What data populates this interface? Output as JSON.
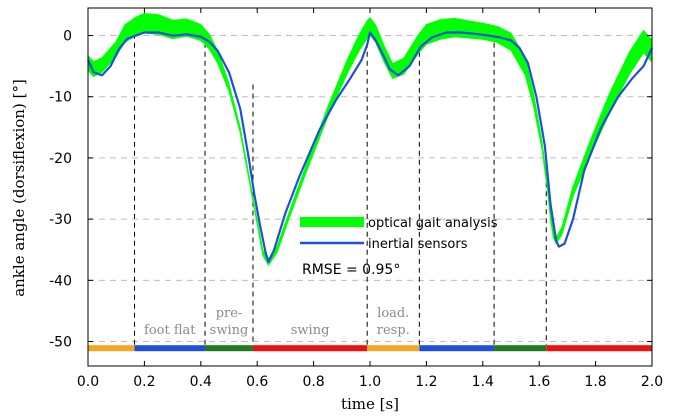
{
  "chart_data": {
    "type": "line",
    "xlabel": "time [s]",
    "ylabel": "ankle angle (dorsiflexion) [°]",
    "xlim": [
      0.0,
      2.0
    ],
    "ylim": [
      -54,
      4.5
    ],
    "xticks": [
      0.0,
      0.2,
      0.4,
      0.6,
      0.8,
      1.0,
      1.2,
      1.4,
      1.6,
      1.8,
      2.0
    ],
    "xtick_labels": [
      "0.0",
      "0.2",
      "0.4",
      "0.6",
      "0.8",
      "1.0",
      "1.2",
      "1.4",
      "1.6",
      "1.8",
      "2.0"
    ],
    "yticks": [
      0,
      -10,
      -20,
      -30,
      -40,
      -50
    ],
    "ytick_labels": [
      "0",
      "-10",
      "-20",
      "-30",
      "-40",
      "-50"
    ],
    "grid": "horizontal dashed",
    "legend": {
      "placement": "center",
      "entries": [
        "optical gait analysis",
        "inertial sensors"
      ]
    },
    "annotation": "RMSE = 0.95°",
    "series": [
      {
        "name": "optical gait analysis",
        "color": "#00ff00",
        "band": true,
        "x": [
          0.0,
          0.02,
          0.05,
          0.1,
          0.13,
          0.17,
          0.2,
          0.25,
          0.3,
          0.35,
          0.4,
          0.43,
          0.46,
          0.5,
          0.54,
          0.57,
          0.6,
          0.62,
          0.64,
          0.67,
          0.72,
          0.78,
          0.85,
          0.92,
          0.96,
          0.99,
          1.0,
          1.02,
          1.05,
          1.08,
          1.12,
          1.17,
          1.2,
          1.25,
          1.3,
          1.35,
          1.4,
          1.45,
          1.5,
          1.55,
          1.58,
          1.61,
          1.63,
          1.64,
          1.65,
          1.66,
          1.68,
          1.72,
          1.78,
          1.85,
          1.92,
          1.97,
          2.0
        ],
        "y": [
          -4.5,
          -5.5,
          -4.8,
          -2.2,
          0.3,
          1.5,
          2.0,
          1.8,
          1.0,
          1.3,
          0.5,
          -1.0,
          -3.5,
          -8.5,
          -15.5,
          -23.0,
          -30.5,
          -35.5,
          -37.0,
          -35.0,
          -28.5,
          -21.0,
          -12.5,
          -5.0,
          -1.3,
          1.0,
          1.5,
          0.3,
          -3.0,
          -5.8,
          -5.0,
          -1.5,
          0.2,
          1.0,
          1.3,
          1.0,
          0.7,
          0.2,
          -1.0,
          -5.0,
          -10.5,
          -18.0,
          -25.0,
          -29.5,
          -32.5,
          -33.5,
          -32.0,
          -25.5,
          -18.5,
          -11.0,
          -4.5,
          -1.0,
          -2.5
        ],
        "halfwidth": [
          1.2,
          1.2,
          1.2,
          1.2,
          1.4,
          1.5,
          1.6,
          1.6,
          1.5,
          1.4,
          1.3,
          1.2,
          1.0,
          0.6,
          0.4,
          0.3,
          0.3,
          0.4,
          0.5,
          0.5,
          0.5,
          0.6,
          0.8,
          1.1,
          1.3,
          1.4,
          1.4,
          1.4,
          1.3,
          1.2,
          1.3,
          1.5,
          1.6,
          1.6,
          1.5,
          1.4,
          1.3,
          1.3,
          1.4,
          1.4,
          1.0,
          0.6,
          0.5,
          0.5,
          0.5,
          0.5,
          0.6,
          0.8,
          1.2,
          1.6,
          1.8,
          1.8,
          1.8
        ]
      },
      {
        "name": "inertial sensors",
        "color": "#1f4fe0",
        "x": [
          0.0,
          0.02,
          0.05,
          0.08,
          0.11,
          0.14,
          0.17,
          0.2,
          0.25,
          0.3,
          0.35,
          0.4,
          0.43,
          0.46,
          0.5,
          0.54,
          0.57,
          0.59,
          0.61,
          0.63,
          0.64,
          0.66,
          0.7,
          0.75,
          0.82,
          0.88,
          0.93,
          0.97,
          0.99,
          1.0,
          1.02,
          1.05,
          1.07,
          1.1,
          1.14,
          1.18,
          1.22,
          1.27,
          1.32,
          1.37,
          1.42,
          1.46,
          1.5,
          1.53,
          1.56,
          1.59,
          1.62,
          1.64,
          1.66,
          1.67,
          1.69,
          1.72,
          1.76,
          1.82,
          1.88,
          1.93,
          1.97,
          2.0
        ],
        "y": [
          -4.0,
          -6.0,
          -6.5,
          -5.0,
          -2.2,
          -0.5,
          0.0,
          0.5,
          0.5,
          0.0,
          0.2,
          -0.2,
          -1.0,
          -2.5,
          -6.0,
          -12.0,
          -20.0,
          -26.0,
          -31.0,
          -35.5,
          -37.0,
          -35.0,
          -29.0,
          -23.0,
          -15.5,
          -10.5,
          -7.0,
          -4.0,
          -1.5,
          0.5,
          -0.8,
          -3.5,
          -5.5,
          -6.5,
          -5.0,
          -1.8,
          -0.3,
          0.5,
          0.5,
          0.3,
          0.0,
          -0.3,
          -0.8,
          -2.0,
          -4.5,
          -10.0,
          -18.0,
          -27.5,
          -33.5,
          -34.5,
          -34.0,
          -30.0,
          -22.0,
          -15.0,
          -10.0,
          -7.0,
          -5.0,
          -2.0
        ]
      }
    ],
    "phase_lines_x": [
      0.165,
      0.415,
      0.585,
      0.99,
      1.175,
      1.44,
      1.625
    ],
    "phase_bar": [
      {
        "x0": 0.0,
        "x1": 0.165,
        "color": "#f5a623",
        "label": ""
      },
      {
        "x0": 0.165,
        "x1": 0.415,
        "color": "#1f4fe0",
        "label": "foot flat"
      },
      {
        "x0": 0.415,
        "x1": 0.585,
        "color": "#1e7b1e",
        "label": "pre-\nswing"
      },
      {
        "x0": 0.585,
        "x1": 0.99,
        "color": "#ee1111",
        "label": "swing"
      },
      {
        "x0": 0.99,
        "x1": 1.175,
        "color": "#f5a623",
        "label": "load.\nresp."
      },
      {
        "x0": 1.175,
        "x1": 1.44,
        "color": "#1f4fe0",
        "label": ""
      },
      {
        "x0": 1.44,
        "x1": 1.625,
        "color": "#1e7b1e",
        "label": ""
      },
      {
        "x0": 1.625,
        "x1": 2.0,
        "color": "#ee1111",
        "label": ""
      }
    ]
  }
}
